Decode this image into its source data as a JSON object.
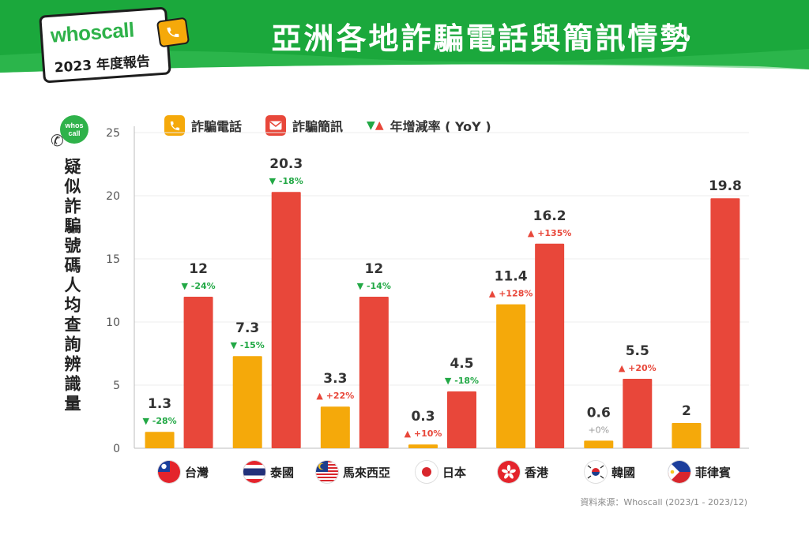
{
  "header": {
    "brand": "whoscall",
    "report_label": "2023 年度報告",
    "title": "亞洲各地詐騙電話與簡訊情勢",
    "green": "#1ba83c",
    "side_logo": "whos call"
  },
  "legend": {
    "calls_label": "詐騙電話",
    "sms_label": "詐騙簡訊",
    "yoy_label": "年增減率 ( YoY )"
  },
  "colors": {
    "calls": "#f5a90a",
    "sms": "#e8473a",
    "down": "#22a845",
    "up": "#e8473a",
    "flat": "#999999"
  },
  "chart_data": {
    "type": "bar",
    "ylabel": "疑似詐騙號碼人均查詢辨識量",
    "ylim": [
      0,
      25
    ],
    "yticks": [
      0,
      5,
      10,
      15,
      20,
      25
    ],
    "categories": [
      "台灣",
      "泰國",
      "馬來西亞",
      "日本",
      "香港",
      "韓國",
      "菲律賓"
    ],
    "series": [
      {
        "name": "詐騙電話",
        "values": [
          1.3,
          7.3,
          3.3,
          0.3,
          11.4,
          0.6,
          2
        ],
        "labels": [
          "1.3",
          "7.3",
          "3.3",
          "0.3",
          "11.4",
          "0.6",
          "2"
        ],
        "yoy": [
          "-28%",
          "-15%",
          "+22%",
          "+10%",
          "+128%",
          "+0%",
          ""
        ],
        "yoy_dir": [
          "down",
          "down",
          "up",
          "up",
          "up",
          "flat",
          ""
        ]
      },
      {
        "name": "詐騙簡訊",
        "values": [
          12,
          20.3,
          12,
          4.5,
          16.2,
          5.5,
          19.8
        ],
        "labels": [
          "12",
          "20.3",
          "12",
          "4.5",
          "16.2",
          "5.5",
          "19.8"
        ],
        "yoy": [
          "-24%",
          "-18%",
          "-14%",
          "-18%",
          "+135%",
          "+20%",
          ""
        ],
        "yoy_dir": [
          "down",
          "down",
          "down",
          "down",
          "up",
          "up",
          ""
        ]
      }
    ]
  },
  "countries": [
    "台灣",
    "泰國",
    "馬來西亞",
    "日本",
    "香港",
    "韓國",
    "菲律賓"
  ],
  "source": "資料來源：Whoscall (2023/1 - 2023/12)"
}
